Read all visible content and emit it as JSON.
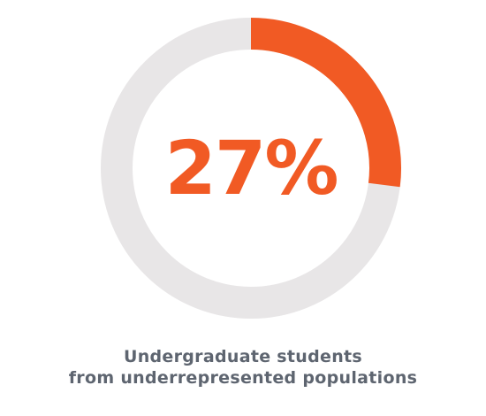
{
  "chart_data": {
    "type": "pie",
    "style": "donut",
    "value_label": "27%",
    "slices": [
      {
        "value": 27,
        "color": "#f15a24"
      },
      {
        "value": 73,
        "color": "#e8e6e7"
      }
    ],
    "caption": [
      "Undergraduate students",
      "from underrepresented populations"
    ]
  }
}
